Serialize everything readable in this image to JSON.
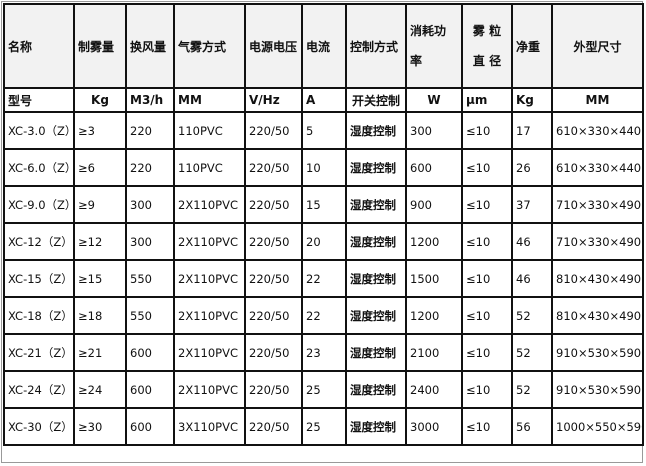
{
  "header": [
    "名称",
    "制雾量",
    "换风量",
    "气雾方式",
    "电源电压",
    "电流",
    "控制方式",
    [
      "消耗功",
      "率"
    ],
    [
      "雾 粒",
      "直 径"
    ],
    "净重",
    "外型尺寸"
  ],
  "units": [
    "型号",
    "Kg",
    "M3/h",
    "MM",
    "V/Hz",
    "A",
    "开关控制",
    "W",
    "μm",
    "Kg",
    "MM"
  ],
  "rows": [
    [
      "XC-3.0（Z）",
      "≥3",
      "220",
      "110PVC",
      "220/50",
      "5",
      "湿度控制",
      "300",
      "≤10",
      "17",
      "610×330×440"
    ],
    [
      "XC-6.0（Z）",
      "≥6",
      "220",
      "110PVC",
      "220/50",
      "10",
      "湿度控制",
      "600",
      "≤10",
      "26",
      "610×330×440"
    ],
    [
      "XC-9.0（Z）",
      "≥9",
      "300",
      "2X110PVC",
      "220/50",
      "15",
      "湿度控制",
      "900",
      "≤10",
      "37",
      "710×330×490"
    ],
    [
      "XC-12（Z）",
      "≥12",
      "300",
      "2X110PVC",
      "220/50",
      "20",
      "湿度控制",
      "1200",
      "≤10",
      "46",
      "710×330×490"
    ],
    [
      "XC-15（Z）",
      "≥15",
      "550",
      "2X110PVC",
      "220/50",
      "22",
      "湿度控制",
      "1500",
      "≤10",
      "46",
      "810×430×490"
    ],
    [
      "XC-18（Z）",
      "≥18",
      "550",
      "2X110PVC",
      "220/50",
      "22",
      "湿度控制",
      "1200",
      "≤10",
      "52",
      "810×430×490"
    ],
    [
      "XC-21（Z）",
      "≥21",
      "600",
      "2X110PVC",
      "220/50",
      "23",
      "湿度控制",
      "2100",
      "≤10",
      "52",
      "910×530×590"
    ],
    [
      "XC-24（Z）",
      "≥24",
      "600",
      "2X110PVC",
      "220/50",
      "25",
      "湿度控制",
      "2400",
      "≤10",
      "52",
      "910×530×590"
    ],
    [
      "XC-30（Z）",
      "≥30",
      "600",
      "3X110PVC",
      "220/50",
      "25",
      "湿度控制",
      "3000",
      "≤10",
      "56",
      "1000×550×590"
    ]
  ]
}
